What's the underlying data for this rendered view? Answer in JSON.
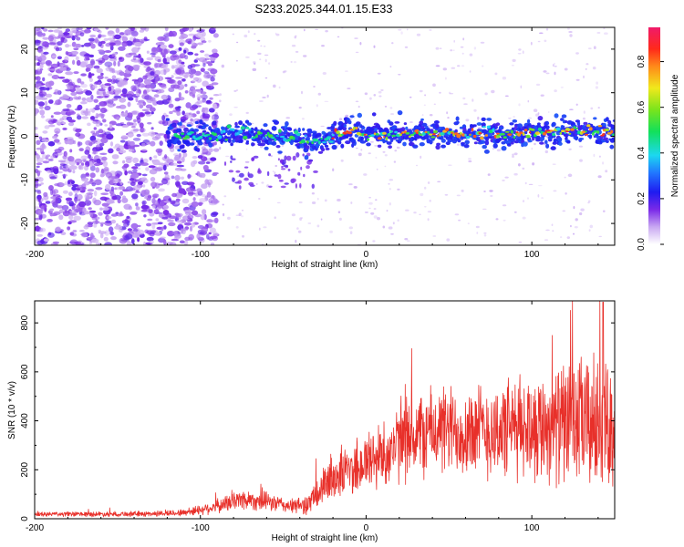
{
  "title": "S233.2025.344.01.15.E33",
  "chart_data": [
    {
      "type": "heatmap",
      "name": "spectrogram",
      "xlabel": "Height of straight line (km)",
      "ylabel": "Frequency (Hz)",
      "xlim": [
        -200,
        150
      ],
      "ylim": [
        -25,
        25
      ],
      "xticks": [
        -200,
        -100,
        0,
        100
      ],
      "yticks": [
        -20,
        -10,
        0,
        10,
        20
      ],
      "colorbar": {
        "label": "Normalized spectral amplitude",
        "range": [
          0.0,
          0.95
        ],
        "ticks": [
          0.0,
          0.2,
          0.4,
          0.6,
          0.8
        ],
        "tick_labels": [
          "0.0",
          "0.2",
          "0.4",
          "0.6",
          "0.8"
        ]
      },
      "signal_band": {
        "x_start": -120,
        "x_end": 150,
        "center_hz_points": [
          [
            -120,
            0
          ],
          [
            -80,
            0.5
          ],
          [
            -50,
            0
          ],
          [
            -30,
            -1.5
          ],
          [
            -20,
            0
          ],
          [
            -10,
            1.5
          ],
          [
            0,
            0.5
          ],
          [
            30,
            0.5
          ],
          [
            80,
            0.5
          ],
          [
            110,
            1
          ],
          [
            150,
            1
          ]
        ],
        "half_width_hz": 2.5
      }
    },
    {
      "type": "line",
      "name": "snr",
      "xlabel": "Height of straight line (km)",
      "ylabel": "SNR (10 * v/v)",
      "xlim": [
        -200,
        150
      ],
      "ylim": [
        0,
        890
      ],
      "xticks": [
        -200,
        -100,
        0,
        100
      ],
      "yticks": [
        0,
        200,
        400,
        600,
        800
      ],
      "color": "#e8302a",
      "envelope": {
        "x": [
          -200,
          -130,
          -110,
          -90,
          -75,
          -60,
          -45,
          -35,
          -28,
          -20,
          -10,
          0,
          15,
          25,
          40,
          60,
          80,
          100,
          120,
          135,
          150
        ],
        "mean": [
          18,
          20,
          25,
          50,
          80,
          70,
          50,
          60,
          110,
          170,
          200,
          230,
          280,
          330,
          360,
          360,
          360,
          380,
          390,
          390,
          380
        ],
        "spread": [
          10,
          12,
          15,
          30,
          45,
          40,
          30,
          45,
          80,
          100,
          120,
          140,
          150,
          180,
          190,
          200,
          210,
          230,
          260,
          300,
          250
        ]
      },
      "peak": {
        "x": 143,
        "y": 885
      }
    }
  ]
}
